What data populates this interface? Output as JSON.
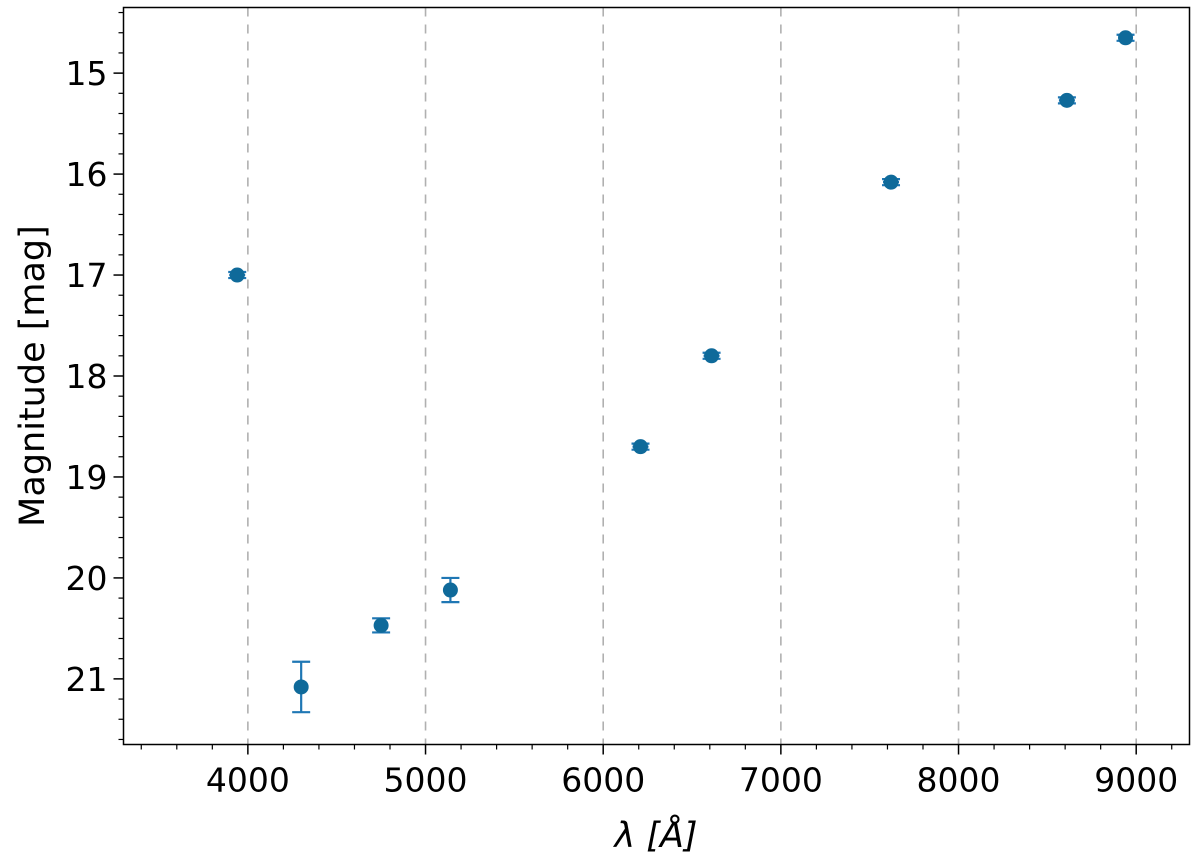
{
  "chart_data": {
    "type": "scatter",
    "xlabel": "λ [Å]",
    "ylabel": "Magnitude [mag]",
    "xlim": [
      3300,
      9300
    ],
    "ylim": [
      21.65,
      14.35
    ],
    "y_inverted": true,
    "x_ticks": [
      4000,
      5000,
      6000,
      7000,
      8000,
      9000
    ],
    "x_tick_labels": [
      "4000",
      "5000",
      "6000",
      "7000",
      "8000",
      "9000"
    ],
    "y_ticks": [
      15,
      16,
      17,
      18,
      19,
      20,
      21
    ],
    "y_tick_labels": [
      "15",
      "16",
      "17",
      "18",
      "19",
      "20",
      "21"
    ],
    "x_minor_step": 200,
    "y_minor_step": 0.2,
    "grid": "vertical dashed at x major ticks",
    "marker_color": "#0f6a9a",
    "errorbar_color": "#1f77b4",
    "grid_color": "#b0b0b0",
    "series": [
      {
        "points": [
          {
            "x": 3940,
            "y": 17.0,
            "yerr": 0.03,
            "xerr": 45
          },
          {
            "x": 4300,
            "y": 21.08,
            "yerr": 0.25
          },
          {
            "x": 4750,
            "y": 20.47,
            "yerr": 0.07
          },
          {
            "x": 5140,
            "y": 20.12,
            "yerr": 0.12
          },
          {
            "x": 6210,
            "y": 18.7,
            "yerr": 0.03,
            "xerr": 45
          },
          {
            "x": 6610,
            "y": 17.8,
            "yerr": 0.03,
            "xerr": 45
          },
          {
            "x": 7620,
            "y": 16.08,
            "yerr": 0.03,
            "xerr": 45
          },
          {
            "x": 8610,
            "y": 15.27,
            "yerr": 0.03,
            "xerr": 45
          },
          {
            "x": 8940,
            "y": 14.65,
            "yerr": 0.03,
            "xerr": 40
          }
        ]
      }
    ]
  }
}
